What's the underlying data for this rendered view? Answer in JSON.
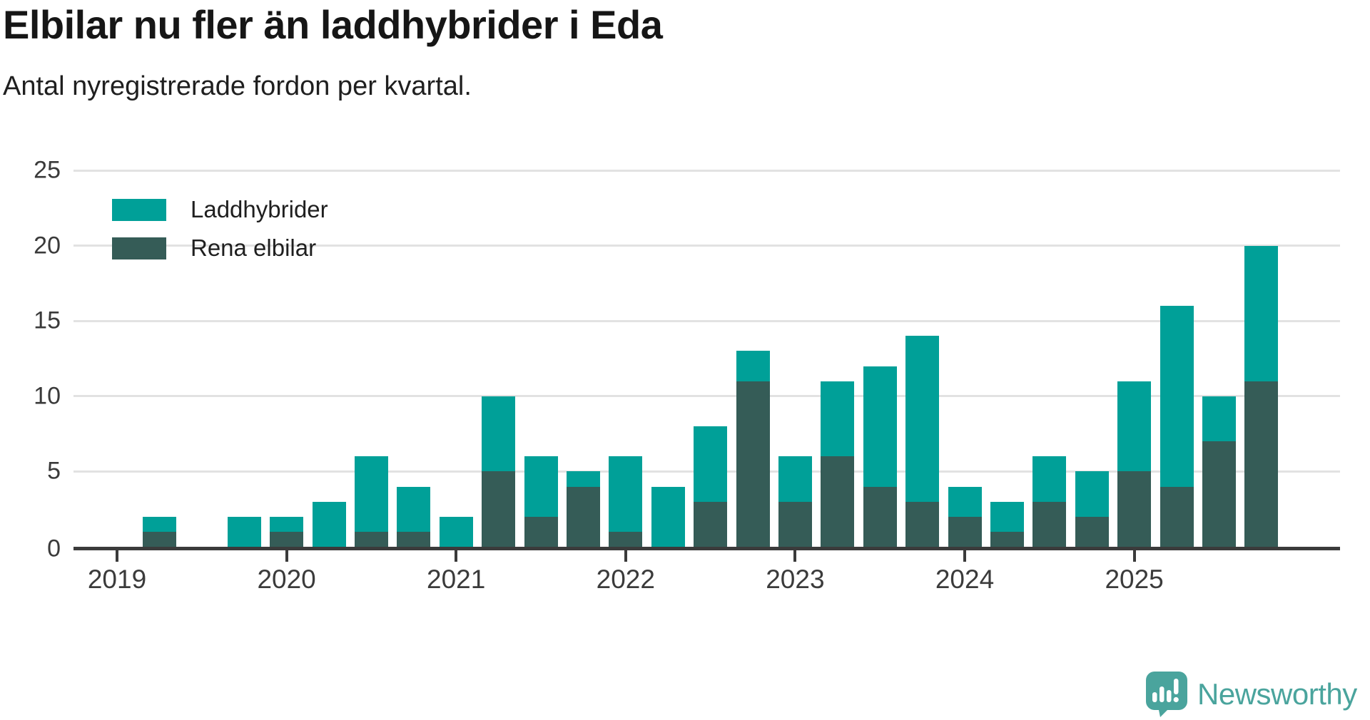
{
  "header": {
    "title": "Elbilar nu fler än laddhybrider i Eda",
    "subtitle": "Antal nyregistrerade fordon per kvartal."
  },
  "legend": {
    "items": [
      {
        "label": "Laddhybrider",
        "color": "#00a098"
      },
      {
        "label": "Rena elbilar",
        "color": "#355c57"
      }
    ]
  },
  "chart_data": {
    "type": "bar",
    "stacked": true,
    "title": "Elbilar nu fler än laddhybrider i Eda",
    "subtitle": "Antal nyregistrerade fordon per kvartal.",
    "xlabel": "",
    "ylabel": "",
    "ylim": [
      0,
      25
    ],
    "yticks": [
      0,
      5,
      10,
      15,
      20,
      25
    ],
    "grid": true,
    "legend_position": "top-left",
    "categories": [
      "2019 Q1",
      "2019 Q2",
      "2019 Q3",
      "2019 Q4",
      "2020 Q1",
      "2020 Q2",
      "2020 Q3",
      "2020 Q4",
      "2021 Q1",
      "2021 Q2",
      "2021 Q3",
      "2021 Q4",
      "2022 Q1",
      "2022 Q2",
      "2022 Q3",
      "2022 Q4",
      "2023 Q1",
      "2023 Q2",
      "2023 Q3",
      "2023 Q4",
      "2024 Q1",
      "2024 Q2",
      "2024 Q3",
      "2024 Q4",
      "2025 Q1",
      "2025 Q2",
      "2025 Q3",
      "2025 Q4"
    ],
    "xticks": [
      "2019",
      "2020",
      "2021",
      "2022",
      "2023",
      "2024",
      "2025"
    ],
    "series": [
      {
        "name": "Rena elbilar",
        "color": "#355c57",
        "stack_position": "bottom",
        "values": [
          0,
          1,
          0,
          0,
          1,
          0,
          1,
          1,
          0,
          5,
          2,
          4,
          1,
          0,
          3,
          11,
          3,
          6,
          4,
          3,
          2,
          1,
          3,
          2,
          5,
          4,
          7,
          11
        ]
      },
      {
        "name": "Laddhybrider",
        "color": "#00a098",
        "stack_position": "top",
        "values": [
          0,
          1,
          0,
          2,
          1,
          3,
          5,
          3,
          2,
          5,
          4,
          1,
          5,
          4,
          5,
          2,
          3,
          5,
          8,
          11,
          2,
          2,
          3,
          3,
          6,
          12,
          3,
          9
        ]
      }
    ],
    "totals": [
      0,
      2,
      0,
      2,
      2,
      3,
      6,
      4,
      2,
      10,
      6,
      5,
      6,
      4,
      8,
      13,
      6,
      11,
      12,
      14,
      4,
      3,
      6,
      5,
      11,
      16,
      10,
      20
    ]
  },
  "footer": {
    "brand": "Newsworthy",
    "brand_color": "#4aa49d"
  }
}
